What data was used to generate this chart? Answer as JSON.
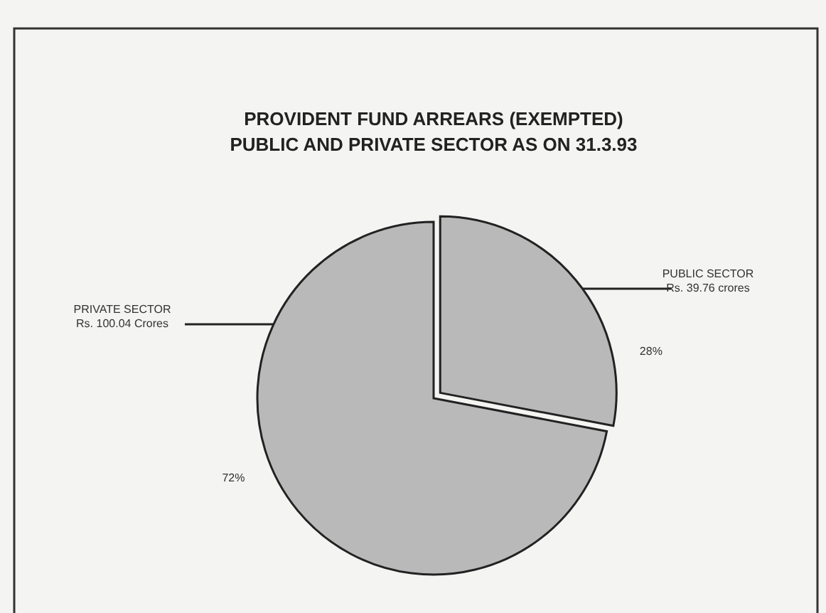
{
  "chart_data": {
    "type": "pie",
    "title": "PROVIDENT FUND ARREARS (EXEMPTED)\nPUBLIC AND PRIVATE SECTOR AS ON 31.3.93",
    "categories": [
      "PUBLIC SECTOR",
      "PRIVATE SECTOR"
    ],
    "values": [
      28,
      72
    ],
    "colors": [
      "#b9b9b9",
      "#b9b9b9"
    ],
    "value_labels": [
      "28%",
      "72%"
    ],
    "annotations": [
      "Rs. 39.76 crores",
      "Rs. 100.04 Crores"
    ]
  }
}
